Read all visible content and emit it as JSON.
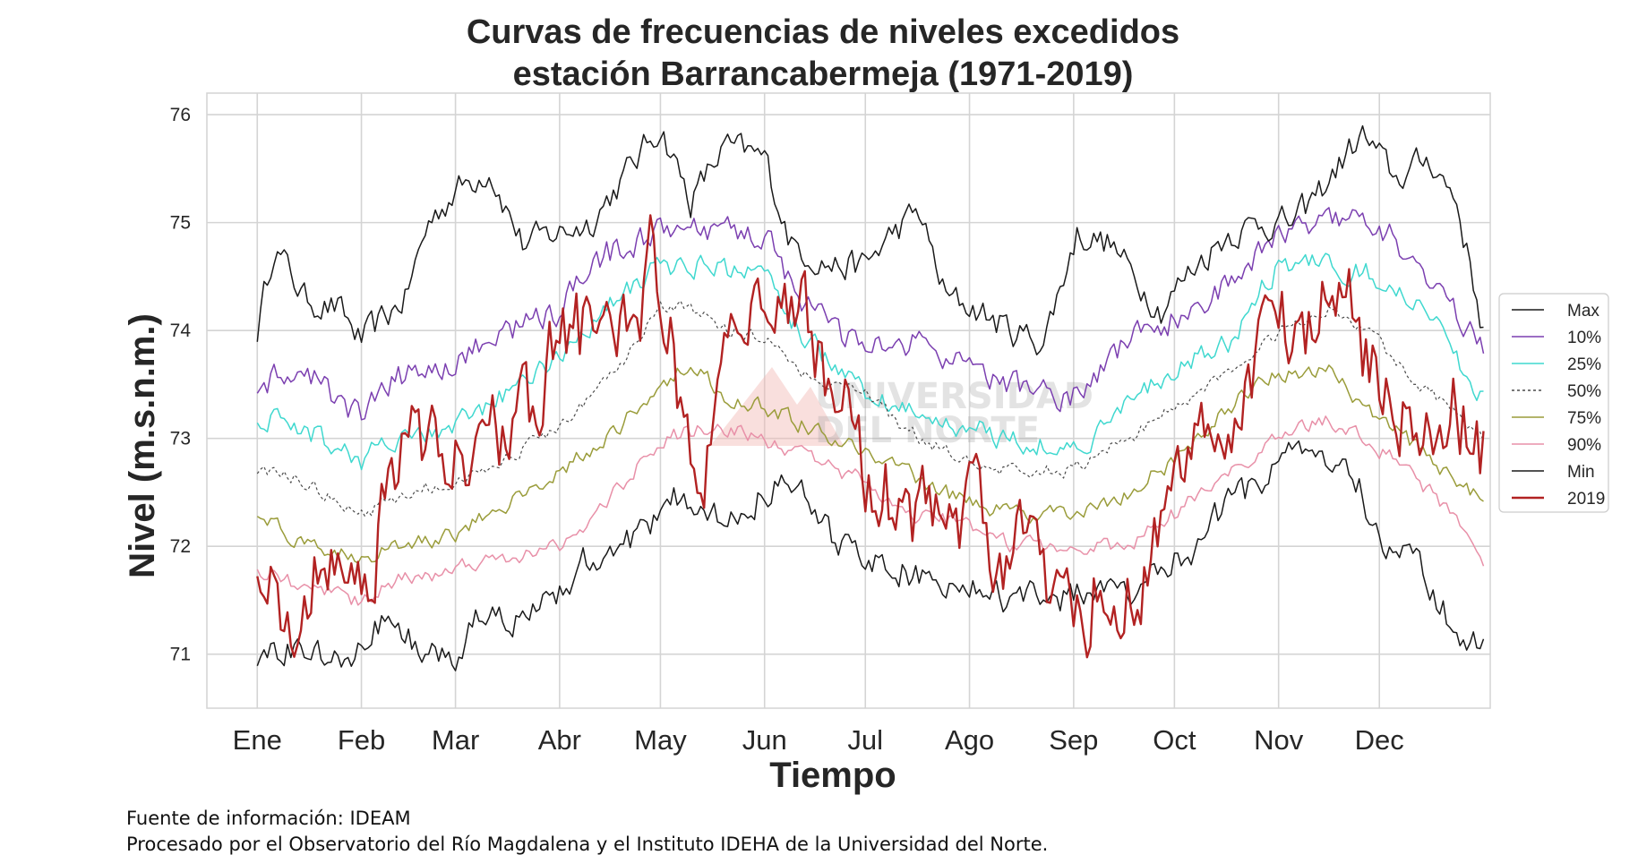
{
  "chart_data": {
    "type": "line",
    "title_line1": "Curvas de frecuencias de niveles excedidos",
    "title_line2": "estación Barrancabermeja (1971-2019)",
    "xlabel": "Tiempo",
    "ylabel": "Nivel (m.s.n.m.)",
    "ylim": [
      70.5,
      76.2
    ],
    "yticks": [
      71,
      72,
      73,
      74,
      75,
      76
    ],
    "xlim": [
      -14,
      368
    ],
    "month_ticks": [
      {
        "label": "Ene",
        "day": 1
      },
      {
        "label": "Feb",
        "day": 32
      },
      {
        "label": "Mar",
        "day": 60
      },
      {
        "label": "Abr",
        "day": 91
      },
      {
        "label": "May",
        "day": 121
      },
      {
        "label": "Jun",
        "day": 152
      },
      {
        "label": "Jul",
        "day": 182
      },
      {
        "label": "Ago",
        "day": 213
      },
      {
        "label": "Sep",
        "day": 244
      },
      {
        "label": "Oct",
        "day": 274
      },
      {
        "label": "Nov",
        "day": 305
      },
      {
        "label": "Dec",
        "day": 335
      }
    ],
    "grid": true,
    "legend_position": "right",
    "x_unit": "day of year",
    "series": [
      {
        "name": "Max",
        "color": "#1a1a1a",
        "dash": "solid",
        "noise": 0.13,
        "x": [
          1,
          6,
          15,
          25,
          32,
          45,
          52,
          60,
          70,
          80,
          90,
          100,
          112,
          121,
          130,
          140,
          152,
          160,
          172,
          182,
          190,
          198,
          206,
          215,
          225,
          235,
          245,
          255,
          262,
          270,
          280,
          290,
          300,
          310,
          320,
          327,
          330,
          340,
          350,
          358,
          366
        ],
        "y": [
          74.0,
          74.8,
          74.3,
          74.2,
          73.9,
          74.3,
          75.0,
          75.3,
          75.5,
          74.8,
          74.9,
          75.0,
          75.5,
          75.9,
          75.2,
          75.7,
          75.6,
          74.8,
          74.6,
          74.6,
          74.9,
          75.1,
          74.3,
          74.2,
          74.0,
          73.9,
          74.9,
          74.8,
          74.5,
          74.2,
          74.6,
          74.9,
          75.0,
          75.0,
          75.4,
          75.7,
          75.8,
          75.4,
          75.6,
          75.2,
          74.0
        ]
      },
      {
        "name": "10%",
        "color": "#7b3fb0",
        "dash": "solid",
        "noise": 0.12,
        "x": [
          1,
          15,
          32,
          45,
          60,
          75,
          91,
          105,
          121,
          135,
          152,
          165,
          182,
          198,
          213,
          225,
          244,
          260,
          274,
          290,
          305,
          320,
          335,
          350,
          366
        ],
        "y": [
          73.5,
          73.6,
          73.2,
          73.6,
          73.7,
          74.0,
          74.2,
          74.7,
          74.9,
          74.9,
          74.9,
          74.2,
          73.8,
          73.9,
          73.6,
          73.5,
          73.4,
          73.9,
          74.1,
          74.4,
          74.9,
          75.1,
          75.0,
          74.5,
          73.8
        ]
      },
      {
        "name": "25%",
        "color": "#3fd8cf",
        "dash": "solid",
        "noise": 0.1,
        "x": [
          1,
          15,
          32,
          45,
          60,
          75,
          91,
          105,
          121,
          135,
          152,
          165,
          182,
          198,
          213,
          225,
          244,
          260,
          274,
          290,
          305,
          320,
          335,
          350,
          366
        ],
        "y": [
          73.2,
          73.1,
          72.8,
          73.0,
          73.1,
          73.4,
          73.8,
          74.2,
          74.6,
          74.6,
          74.5,
          73.9,
          73.4,
          73.2,
          73.1,
          73.0,
          72.9,
          73.3,
          73.6,
          73.9,
          74.6,
          74.6,
          74.5,
          74.1,
          73.4
        ]
      },
      {
        "name": "50%",
        "color": "#4a4a4a",
        "dash": "dashed",
        "noise": 0.06,
        "x": [
          1,
          15,
          32,
          45,
          60,
          75,
          91,
          105,
          121,
          130,
          140,
          152,
          165,
          182,
          198,
          213,
          225,
          244,
          260,
          274,
          290,
          305,
          320,
          335,
          350,
          366
        ],
        "y": [
          72.7,
          72.6,
          72.3,
          72.5,
          72.6,
          72.8,
          73.1,
          73.5,
          74.2,
          74.2,
          74.0,
          73.9,
          73.6,
          73.4,
          73.0,
          72.8,
          72.7,
          72.7,
          73.0,
          73.3,
          73.6,
          74.0,
          74.2,
          73.9,
          73.4,
          73.0
        ]
      },
      {
        "name": "75%",
        "color": "#9a9c3a",
        "dash": "solid",
        "noise": 0.07,
        "x": [
          1,
          15,
          32,
          45,
          60,
          75,
          91,
          105,
          121,
          130,
          140,
          152,
          165,
          182,
          198,
          213,
          225,
          244,
          260,
          274,
          290,
          305,
          320,
          335,
          350,
          366
        ],
        "y": [
          72.3,
          72.0,
          71.9,
          72.0,
          72.1,
          72.4,
          72.7,
          73.0,
          73.5,
          73.7,
          73.4,
          73.3,
          73.1,
          72.9,
          72.6,
          72.4,
          72.3,
          72.3,
          72.5,
          72.8,
          73.3,
          73.6,
          73.6,
          73.2,
          72.8,
          72.4
        ]
      },
      {
        "name": "90%",
        "color": "#e890a8",
        "dash": "solid",
        "noise": 0.07,
        "x": [
          1,
          15,
          32,
          45,
          60,
          75,
          91,
          105,
          121,
          135,
          152,
          165,
          182,
          198,
          213,
          225,
          244,
          260,
          274,
          290,
          305,
          320,
          335,
          350,
          366
        ],
        "y": [
          71.8,
          71.6,
          71.5,
          71.7,
          71.8,
          71.9,
          72.0,
          72.4,
          73.0,
          73.1,
          73.0,
          72.8,
          72.6,
          72.3,
          72.2,
          72.0,
          72.0,
          72.0,
          72.3,
          72.7,
          73.0,
          73.2,
          72.9,
          72.5,
          71.9
        ]
      },
      {
        "name": "Min",
        "color": "#1a1a1a",
        "dash": "solid",
        "noise": 0.13,
        "x": [
          1,
          10,
          20,
          28,
          36,
          45,
          52,
          60,
          68,
          78,
          91,
          100,
          110,
          118,
          125,
          135,
          145,
          152,
          160,
          172,
          182,
          192,
          200,
          213,
          225,
          235,
          244,
          254,
          262,
          270,
          280,
          290,
          300,
          308,
          318,
          330,
          335,
          345,
          356,
          362,
          366
        ],
        "y": [
          70.9,
          71.1,
          71.0,
          70.8,
          71.3,
          71.2,
          71.0,
          70.9,
          71.4,
          71.3,
          71.6,
          71.9,
          72.0,
          72.2,
          72.5,
          72.2,
          72.3,
          72.5,
          72.6,
          72.1,
          71.9,
          71.8,
          71.7,
          71.6,
          71.5,
          71.6,
          71.5,
          71.7,
          71.5,
          71.8,
          72.0,
          72.4,
          72.6,
          72.9,
          72.9,
          72.5,
          72.0,
          71.9,
          71.3,
          71.0,
          71.2
        ]
      },
      {
        "name": "2019",
        "color": "#b22222",
        "dash": "solid",
        "noise": 0.38,
        "x": [
          1,
          10,
          18,
          26,
          32,
          40,
          46,
          52,
          58,
          64,
          70,
          80,
          88,
          94,
          100,
          106,
          112,
          118,
          122,
          128,
          134,
          140,
          146,
          152,
          158,
          164,
          170,
          176,
          182,
          190,
          198,
          206,
          215,
          224,
          232,
          240,
          248,
          256,
          262,
          270,
          278,
          286,
          294,
          300,
          306,
          312,
          318,
          324,
          330,
          336,
          342,
          350,
          356,
          362,
          366
        ],
        "y": [
          71.7,
          71.4,
          71.9,
          72.1,
          71.7,
          72.3,
          72.9,
          73.0,
          72.8,
          72.7,
          73.0,
          73.2,
          73.7,
          74.0,
          74.0,
          73.9,
          73.8,
          74.7,
          74.4,
          73.0,
          72.6,
          74.1,
          74.0,
          74.6,
          74.4,
          74.1,
          73.5,
          73.2,
          72.8,
          72.5,
          72.3,
          72.4,
          72.3,
          71.9,
          72.0,
          71.6,
          71.5,
          71.6,
          71.6,
          72.3,
          72.7,
          72.9,
          73.2,
          73.7,
          74.0,
          74.1,
          74.3,
          74.4,
          73.9,
          73.3,
          73.1,
          73.2,
          73.4,
          73.1,
          72.9
        ]
      }
    ]
  },
  "footer": {
    "line1": "Fuente de información: IDEAM",
    "line2": "Procesado por el Observatorio del Río Magdalena y el Instituto IDEHA de la Universidad del Norte."
  },
  "watermark": {
    "line1": "UNIVERSIDAD",
    "line2": "DEL NORTE",
    "logo_color": "#f2b9b4"
  }
}
